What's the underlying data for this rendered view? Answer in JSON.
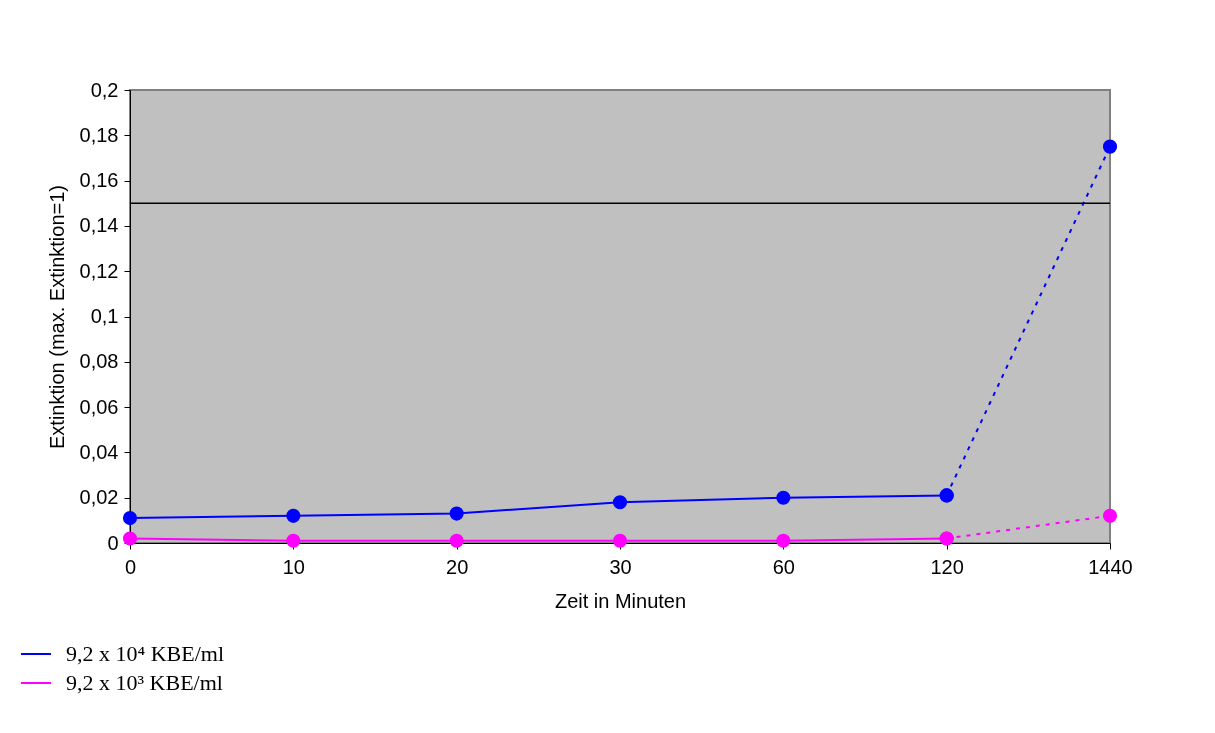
{
  "chart_data": {
    "type": "line",
    "xlabel": "Zeit in Minuten",
    "ylabel": "Extinktion (max. Extinktion=1)",
    "categories": [
      "0",
      "10",
      "20",
      "30",
      "60",
      "120",
      "1440"
    ],
    "series": [
      {
        "name": "9,2 x 10⁴ KBE/ml",
        "color": "#0000ff",
        "values": [
          0.011,
          0.012,
          0.013,
          0.018,
          0.02,
          0.021,
          null
        ],
        "marker": "circle",
        "line_style": "solid"
      },
      {
        "name": "9,2 x 10³ KBE/ml",
        "color": "#ff00ff",
        "values": [
          0.002,
          0.001,
          0.001,
          0.001,
          0.001,
          0.002,
          null
        ],
        "marker": "circle",
        "line_style": "solid"
      },
      {
        "type": "line",
        "color": "#0000ff",
        "values": [
          null,
          null,
          null,
          null,
          null,
          0.021,
          0.175
        ],
        "marker": "circle",
        "line_style": "dotted"
      },
      {
        "type": "line",
        "color": "#ff00ff",
        "values": [
          null,
          null,
          null,
          null,
          null,
          0.002,
          0.012
        ],
        "marker": "circle",
        "line_style": "dotted"
      }
    ],
    "ylim": [
      0,
      0.2
    ],
    "yticks": [
      0,
      {
        "value": 0.02,
        "label": "0,02"
      },
      {
        "value": 0.04,
        "label": "0,04"
      },
      {
        "value": 0.06,
        "label": "0,06"
      },
      {
        "value": 0.08,
        "label": "0,08"
      },
      {
        "value": 0.1,
        "label": "0,1"
      },
      {
        "value": 0.12,
        "label": "0,12"
      },
      {
        "value": 0.14,
        "label": "0,14"
      },
      {
        "value": 0.16,
        "label": "0,16"
      },
      {
        "value": 0.18,
        "label": "0,18"
      },
      {
        "value": 0.2,
        "label": "0,2"
      }
    ],
    "ref_lines": [
      {
        "axis": "y",
        "value": 0.15,
        "color": "#000000"
      }
    ],
    "grid": false,
    "legend": "bottom left"
  }
}
